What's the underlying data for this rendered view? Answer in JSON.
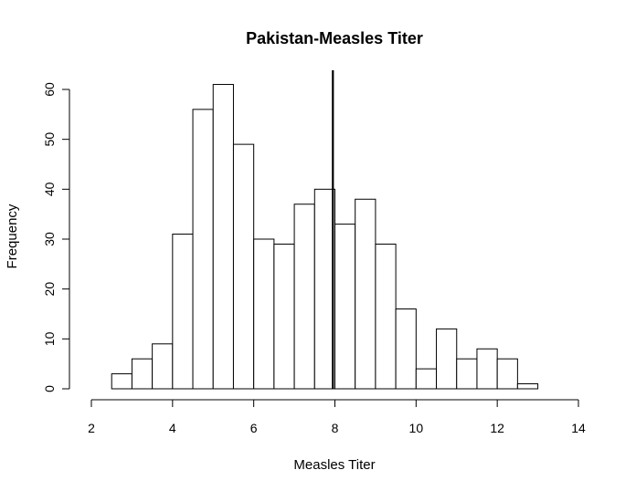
{
  "chart_data": {
    "type": "histogram",
    "title": "Pakistan-Measles Titer",
    "xlabel": "Measles Titer",
    "ylabel": "Frequency",
    "xlim": [
      2,
      14
    ],
    "ylim": [
      0,
      60
    ],
    "x_ticks": [
      2,
      4,
      6,
      8,
      10,
      12,
      14
    ],
    "y_ticks": [
      0,
      10,
      20,
      30,
      40,
      50,
      60
    ],
    "bin_width": 0.5,
    "bins": [
      {
        "start": 2.5,
        "end": 3.0,
        "count": 3
      },
      {
        "start": 3.0,
        "end": 3.5,
        "count": 6
      },
      {
        "start": 3.5,
        "end": 4.0,
        "count": 9
      },
      {
        "start": 4.0,
        "end": 4.5,
        "count": 31
      },
      {
        "start": 4.5,
        "end": 5.0,
        "count": 56
      },
      {
        "start": 5.0,
        "end": 5.5,
        "count": 61
      },
      {
        "start": 5.5,
        "end": 6.0,
        "count": 49
      },
      {
        "start": 6.0,
        "end": 6.5,
        "count": 30
      },
      {
        "start": 6.5,
        "end": 7.0,
        "count": 29
      },
      {
        "start": 7.0,
        "end": 7.5,
        "count": 37
      },
      {
        "start": 7.5,
        "end": 8.0,
        "count": 40
      },
      {
        "start": 8.0,
        "end": 8.5,
        "count": 33
      },
      {
        "start": 8.5,
        "end": 9.0,
        "count": 38
      },
      {
        "start": 9.0,
        "end": 9.5,
        "count": 29
      },
      {
        "start": 9.5,
        "end": 10.0,
        "count": 16
      },
      {
        "start": 10.0,
        "end": 10.5,
        "count": 4
      },
      {
        "start": 10.5,
        "end": 11.0,
        "count": 12
      },
      {
        "start": 11.0,
        "end": 11.5,
        "count": 6
      },
      {
        "start": 11.5,
        "end": 12.0,
        "count": 8
      },
      {
        "start": 12.0,
        "end": 12.5,
        "count": 6
      },
      {
        "start": 12.5,
        "end": 13.0,
        "count": 1
      }
    ],
    "reference_line_x": 7.95
  }
}
